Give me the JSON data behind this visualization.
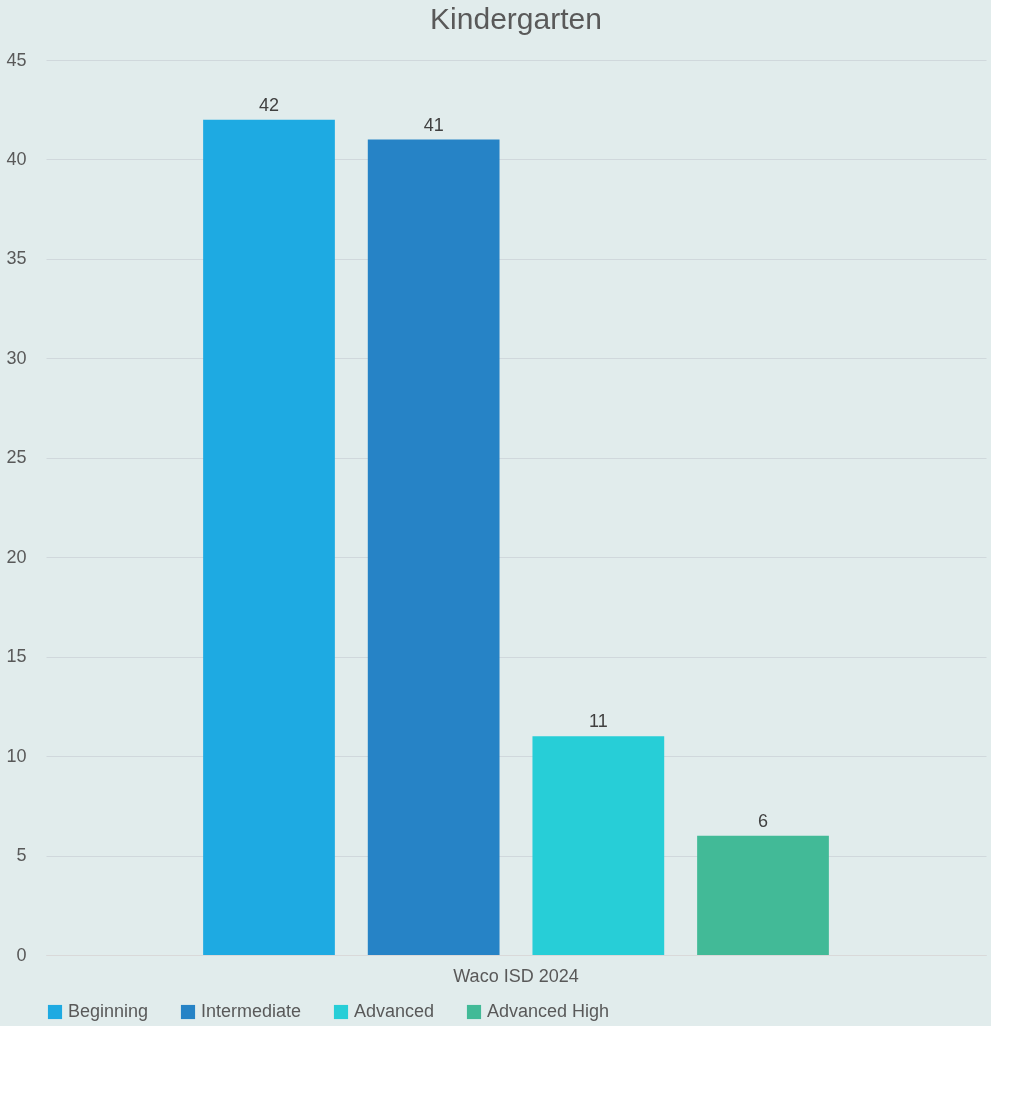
{
  "chart_data": {
    "type": "bar",
    "title": "Kindergarten",
    "categories": [
      "Waco ISD 2024"
    ],
    "series": [
      {
        "name": "Beginning",
        "color": "#1eaae2",
        "values": [
          42
        ]
      },
      {
        "name": "Intermediate",
        "color": "#2683c6",
        "values": [
          41
        ]
      },
      {
        "name": "Advanced",
        "color": "#27ced7",
        "values": [
          11
        ]
      },
      {
        "name": "Advanced High",
        "color": "#42ba97",
        "values": [
          6
        ]
      }
    ],
    "ylim": [
      0,
      45
    ],
    "yticks": [
      0,
      5,
      10,
      15,
      20,
      25,
      30,
      35,
      40,
      45
    ],
    "grid": "y",
    "legend": "bottom",
    "data_labels": true
  }
}
